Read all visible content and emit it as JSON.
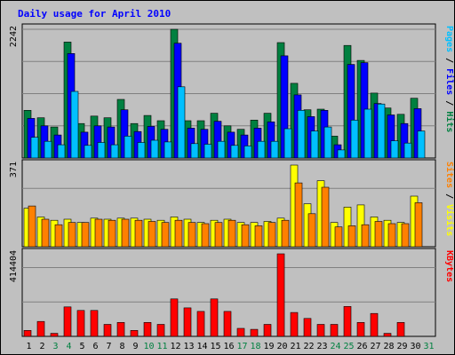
{
  "chart_data": {
    "type": "bar",
    "title": "Daily usage for April 2010",
    "categories": [
      "1",
      "2",
      "3",
      "4",
      "5",
      "6",
      "7",
      "8",
      "9",
      "10",
      "11",
      "12",
      "13",
      "14",
      "15",
      "16",
      "17",
      "18",
      "19",
      "20",
      "21",
      "22",
      "23",
      "24",
      "25",
      "26",
      "27",
      "28",
      "29",
      "30",
      "31"
    ],
    "weekend_days": [
      "3",
      "4",
      "10",
      "11",
      "17",
      "18",
      "24",
      "25",
      "31"
    ],
    "panels": [
      {
        "ylabels": [
          {
            "text": "Pages",
            "color": "#00c0ff"
          },
          {
            "text": "Files",
            "color": "#0000ff"
          },
          {
            "text": "Hits",
            "color": "#008040"
          }
        ],
        "ymax_label": "2242",
        "ymax": 2242,
        "series": [
          {
            "name": "Hits",
            "color": "#008040",
            "values": [
              830,
              700,
              540,
              2020,
              600,
              730,
              700,
              1020,
              600,
              740,
              650,
              2242,
              650,
              650,
              780,
              560,
              500,
              660,
              780,
              2010,
              1300,
              840,
              850,
              380,
              1960,
              1700,
              1130,
              870,
              760,
              1040,
              0
            ]
          },
          {
            "name": "Files",
            "color": "#0000ff",
            "values": [
              690,
              560,
              400,
              1820,
              450,
              560,
              540,
              840,
              460,
              550,
              500,
              2000,
              520,
              500,
              640,
              450,
              400,
              520,
              630,
              1780,
              1100,
              720,
              830,
              230,
              1630,
              1660,
              950,
              750,
              600,
              860,
              0
            ]
          },
          {
            "name": "Pages",
            "color": "#00c0ff",
            "values": [
              360,
              290,
              230,
              1160,
              220,
              270,
              230,
              380,
              270,
              310,
              280,
              1240,
              250,
              240,
              290,
              220,
              210,
              290,
              290,
              510,
              830,
              470,
              540,
              140,
              660,
              850,
              940,
              300,
              260,
              470,
              0
            ]
          }
        ]
      },
      {
        "ylabels": [
          {
            "text": "Sites",
            "color": "#ff8000"
          },
          {
            "text": "Visits",
            "color": "#ffff00"
          }
        ],
        "ymax_label": "371",
        "ymax": 371,
        "series": [
          {
            "name": "Visits",
            "color": "#ffff00",
            "values": [
              175,
              135,
              120,
              125,
              110,
              130,
              125,
              130,
              130,
              125,
              120,
              135,
              125,
              110,
              120,
              125,
              110,
              110,
              115,
              130,
              371,
              195,
              300,
              110,
              180,
              190,
              135,
              120,
              110,
              230,
              0
            ]
          },
          {
            "name": "Sites",
            "color": "#ff8000",
            "values": [
              185,
              125,
              100,
              110,
              110,
              125,
              120,
              125,
              120,
              115,
              110,
              120,
              110,
              105,
              110,
              120,
              100,
              95,
              110,
              120,
              290,
              150,
              270,
              90,
              95,
              100,
              115,
              105,
              105,
              200,
              0
            ]
          }
        ]
      },
      {
        "ylabels": [
          {
            "text": "KBytes",
            "color": "#ff0000"
          }
        ],
        "ymax_label": "414404",
        "ymax": 414404,
        "series": [
          {
            "name": "KBytes",
            "color": "#ff0000",
            "values": [
              30000,
              75000,
              15000,
              148000,
              130000,
              130000,
              60000,
              70000,
              30000,
              70000,
              60000,
              188000,
              143000,
              125000,
              188000,
              125000,
              40000,
              35000,
              60000,
              414404,
              120000,
              90000,
              60000,
              60000,
              150000,
              70000,
              115000,
              15000,
              70000,
              0,
              0
            ]
          }
        ]
      }
    ]
  }
}
